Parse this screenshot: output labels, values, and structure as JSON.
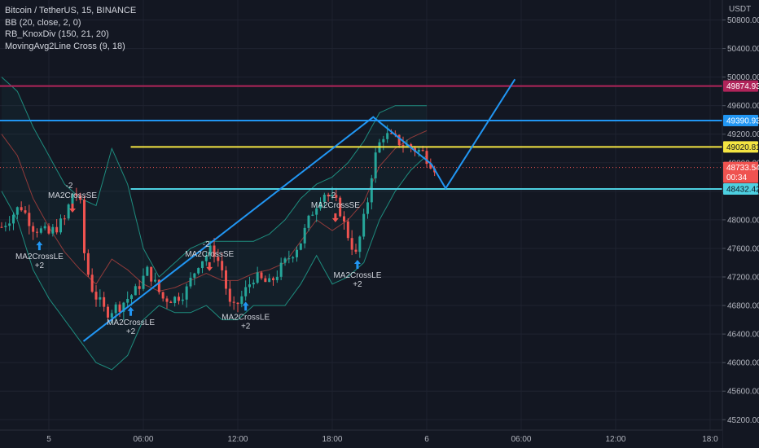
{
  "legend": {
    "symbol": "Bitcoin / TetherUS, 15, BINANCE",
    "indicator1": "BB (20, close, 2, 0)",
    "indicator2": "RB_KnoxDiv (150, 21, 20)",
    "indicator3": "MovingAvg2Line Cross (9, 18)"
  },
  "currency": "USDT",
  "colors": {
    "background": "#131722",
    "up": "#26a69a",
    "down": "#ef5350",
    "blue_line": "#2196f3",
    "yellow_line": "#f4e542",
    "cyan_line": "#4dd0e1",
    "maroon_line": "#b0245a",
    "band": "#1e8c7e",
    "basis": "#b0413e"
  },
  "chart_data": {
    "type": "candlestick",
    "title": "Bitcoin / TetherUS, 15, BINANCE",
    "y_ticks": [
      50800,
      50400,
      50000,
      49600,
      49200,
      48800,
      48400,
      48000,
      47600,
      47200,
      46800,
      46400,
      46000,
      45600,
      45200
    ],
    "y_tick_labels": [
      "50800.00",
      "50400.00",
      "50000.00",
      "49600.00",
      "49200.00",
      "48800.00",
      "48400.00",
      "48000.00",
      "47600.00",
      "47200.00",
      "46800.00",
      "46400.00",
      "46000.00",
      "45600.00",
      "45200.00"
    ],
    "ylim": [
      45050,
      51050
    ],
    "x_ticks": [
      {
        "label": "5",
        "hours": 0
      },
      {
        "label": "06:00",
        "hours": 6
      },
      {
        "label": "12:00",
        "hours": 12
      },
      {
        "label": "18:00",
        "hours": 18
      },
      {
        "label": "6",
        "hours": 24
      },
      {
        "label": "06:00",
        "hours": 30
      },
      {
        "label": "12:00",
        "hours": 36
      },
      {
        "label": "18:0",
        "hours": 42
      }
    ],
    "xlim_hours": [
      -3,
      42
    ],
    "horizontal_lines": [
      {
        "value": 49874.93,
        "label": "49874.93",
        "color": "#b0245a"
      },
      {
        "value": 49390.93,
        "label": "49390.93",
        "color": "#2196f3"
      },
      {
        "value": 49020.81,
        "label": "49020.81",
        "color": "#f4e542",
        "start_hours": 5.2
      },
      {
        "value": 48432.42,
        "label": "48432.42",
        "color": "#4dd0e1",
        "start_hours": 5.2
      }
    ],
    "current_price": {
      "value": 48733.54,
      "label": "48733.54",
      "countdown": "00:34"
    },
    "trend_lines": [
      {
        "points": [
          [
            2.2,
            46300
          ],
          [
            20.6,
            49440
          ],
          [
            24.3,
            48780
          ],
          [
            25.2,
            48440
          ],
          [
            29.6,
            49970
          ]
        ]
      }
    ],
    "ohlc_anchors": [
      [
        -3,
        47900
      ],
      [
        -1.8,
        48200
      ],
      [
        -1,
        47900
      ],
      [
        0,
        47800
      ],
      [
        1,
        48000
      ],
      [
        1.6,
        48450
      ],
      [
        2,
        48200
      ],
      [
        2.3,
        47400
      ],
      [
        2.8,
        47000
      ],
      [
        3.6,
        46700
      ],
      [
        4.5,
        46800
      ],
      [
        5.5,
        47000
      ],
      [
        6.3,
        47300
      ],
      [
        7.2,
        46900
      ],
      [
        8,
        46900
      ],
      [
        8.7,
        47000
      ],
      [
        9.5,
        47400
      ],
      [
        10.4,
        47600
      ],
      [
        11,
        47300
      ],
      [
        11.6,
        46700
      ],
      [
        12.2,
        46900
      ],
      [
        13,
        47200
      ],
      [
        14,
        47100
      ],
      [
        15,
        47400
      ],
      [
        16,
        47700
      ],
      [
        16.7,
        48100
      ],
      [
        17.4,
        48400
      ],
      [
        17.9,
        48300
      ],
      [
        18.4,
        48200
      ],
      [
        18.8,
        47900
      ],
      [
        19.5,
        47500
      ],
      [
        20.2,
        48200
      ],
      [
        20.6,
        48800
      ],
      [
        21.2,
        49200
      ],
      [
        22.2,
        49100
      ],
      [
        23.1,
        49000
      ],
      [
        23.7,
        48950
      ],
      [
        24.1,
        48850
      ],
      [
        24.5,
        48740
      ]
    ],
    "bollinger": {
      "upper_anchors": [
        [
          -3,
          50000
        ],
        [
          -2,
          49800
        ],
        [
          -1,
          49300
        ],
        [
          0,
          48900
        ],
        [
          1,
          48500
        ],
        [
          2,
          48300
        ],
        [
          3,
          48200
        ],
        [
          4,
          49000
        ],
        [
          5,
          48500
        ],
        [
          6,
          47600
        ],
        [
          7,
          47200
        ],
        [
          8,
          47400
        ],
        [
          9,
          47600
        ],
        [
          10,
          47700
        ],
        [
          11,
          47700
        ],
        [
          12,
          47700
        ],
        [
          13,
          47700
        ],
        [
          14,
          47800
        ],
        [
          15,
          48000
        ],
        [
          16,
          48300
        ],
        [
          17,
          48500
        ],
        [
          18,
          48600
        ],
        [
          19,
          48800
        ],
        [
          20,
          49100
        ],
        [
          21,
          49500
        ],
        [
          22,
          49600
        ],
        [
          23,
          49600
        ],
        [
          24,
          49600
        ]
      ],
      "lower_anchors": [
        [
          -3,
          48400
        ],
        [
          -2,
          48000
        ],
        [
          -1,
          47300
        ],
        [
          0,
          46900
        ],
        [
          1,
          46600
        ],
        [
          2,
          46300
        ],
        [
          3,
          46000
        ],
        [
          4,
          45900
        ],
        [
          5,
          46100
        ],
        [
          6,
          46600
        ],
        [
          7,
          46800
        ],
        [
          8,
          46700
        ],
        [
          9,
          46700
        ],
        [
          10,
          46800
        ],
        [
          11,
          46600
        ],
        [
          12,
          46600
        ],
        [
          13,
          46800
        ],
        [
          14,
          46800
        ],
        [
          15,
          46800
        ],
        [
          16,
          47100
        ],
        [
          17,
          47500
        ],
        [
          18,
          47100
        ],
        [
          19,
          47200
        ],
        [
          20,
          47400
        ],
        [
          21,
          48000
        ],
        [
          22,
          48400
        ],
        [
          23,
          48700
        ],
        [
          24,
          48900
        ]
      ]
    },
    "signals": [
      {
        "hours": -0.6,
        "dir": "up",
        "labels": [
          "MA2CrossLE",
          "+2"
        ]
      },
      {
        "hours": 1.5,
        "dir": "down",
        "labels": [
          "-2",
          "MA2CrossSE"
        ]
      },
      {
        "hours": 5.2,
        "dir": "up",
        "labels": [
          "MA2CrossLE",
          "+2"
        ]
      },
      {
        "hours": 10.2,
        "dir": "down",
        "labels": [
          "-2",
          "MA2CrossSE"
        ]
      },
      {
        "hours": 12.5,
        "dir": "up",
        "labels": [
          "MA2CrossLE",
          "+2"
        ]
      },
      {
        "hours": 18.2,
        "dir": "down",
        "labels": [
          "-2",
          "MA2CrossSE"
        ]
      },
      {
        "hours": 19.6,
        "dir": "up",
        "labels": [
          "MA2CrossLE",
          "+2"
        ]
      }
    ]
  }
}
